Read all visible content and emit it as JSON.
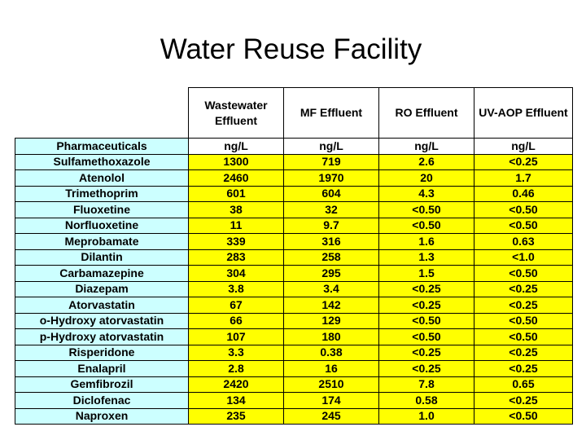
{
  "title": "Water Reuse Facility",
  "table": {
    "columns": [
      "Wastewater Effluent",
      "MF Effluent",
      "RO Effluent",
      "UV-AOP Effluent"
    ],
    "units_row": [
      "Pharmaceuticals",
      "ng/L",
      "ng/L",
      "ng/L",
      "ng/L"
    ],
    "rows": [
      [
        "Sulfamethoxazole",
        "1300",
        "719",
        "2.6",
        "<0.25"
      ],
      [
        "Atenolol",
        "2460",
        "1970",
        "20",
        "1.7"
      ],
      [
        "Trimethoprim",
        "601",
        "604",
        "4.3",
        "0.46"
      ],
      [
        "Fluoxetine",
        "38",
        "32",
        "<0.50",
        "<0.50"
      ],
      [
        "Norfluoxetine",
        "11",
        "9.7",
        "<0.50",
        "<0.50"
      ],
      [
        "Meprobamate",
        "339",
        "316",
        "1.6",
        "0.63"
      ],
      [
        "Dilantin",
        "283",
        "258",
        "1.3",
        "<1.0"
      ],
      [
        "Carbamazepine",
        "304",
        "295",
        "1.5",
        "<0.50"
      ],
      [
        "Diazepam",
        "3.8",
        "3.4",
        "<0.25",
        "<0.25"
      ],
      [
        "Atorvastatin",
        "67",
        "142",
        "<0.25",
        "<0.25"
      ],
      [
        "o-Hydroxy atorvastatin",
        "66",
        "129",
        "<0.50",
        "<0.50"
      ],
      [
        "p-Hydroxy atorvastatin",
        "107",
        "180",
        "<0.50",
        "<0.50"
      ],
      [
        "Risperidone",
        "3.3",
        "0.38",
        "<0.25",
        "<0.25"
      ],
      [
        "Enalapril",
        "2.8",
        "16",
        "<0.25",
        "<0.25"
      ],
      [
        "Gemfibrozil",
        "2420",
        "2510",
        "7.8",
        "0.65"
      ],
      [
        "Diclofenac",
        "134",
        "174",
        "0.58",
        "<0.25"
      ],
      [
        "Naproxen",
        "235",
        "245",
        "1.0",
        "<0.50"
      ]
    ]
  },
  "colors": {
    "name_bg": "#ccffff",
    "value_bg": "#ffff00",
    "header_bg": "#ffffff"
  }
}
